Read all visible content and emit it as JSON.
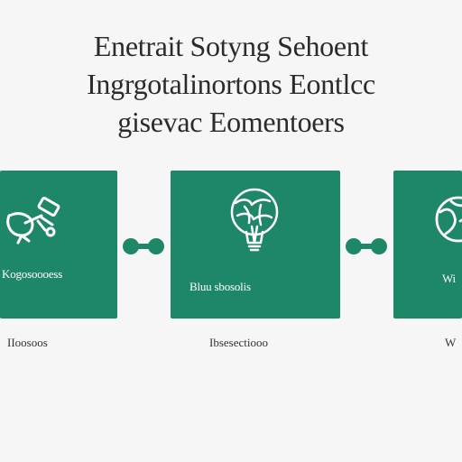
{
  "title": {
    "line1": "Enetrait Sotyng Sehoent",
    "line2": "Ingrgotalinortons Eontlcc",
    "line3": "gisevac Eomentoers"
  },
  "steps": [
    {
      "label": "Kogosoooess",
      "caption": "IIoosoos",
      "icon": "satellite-dish-icon"
    },
    {
      "label": "Bluu sbosolis",
      "caption": "Ibsesectiooo",
      "icon": "globe-lightbulb-icon"
    },
    {
      "label": "Wi",
      "caption": "W",
      "icon": "globe-icon"
    }
  ],
  "colors": {
    "card": "#1e8767",
    "connector": "#1e8767",
    "card_text": "#ffffff",
    "background": "#f6f6f6"
  }
}
